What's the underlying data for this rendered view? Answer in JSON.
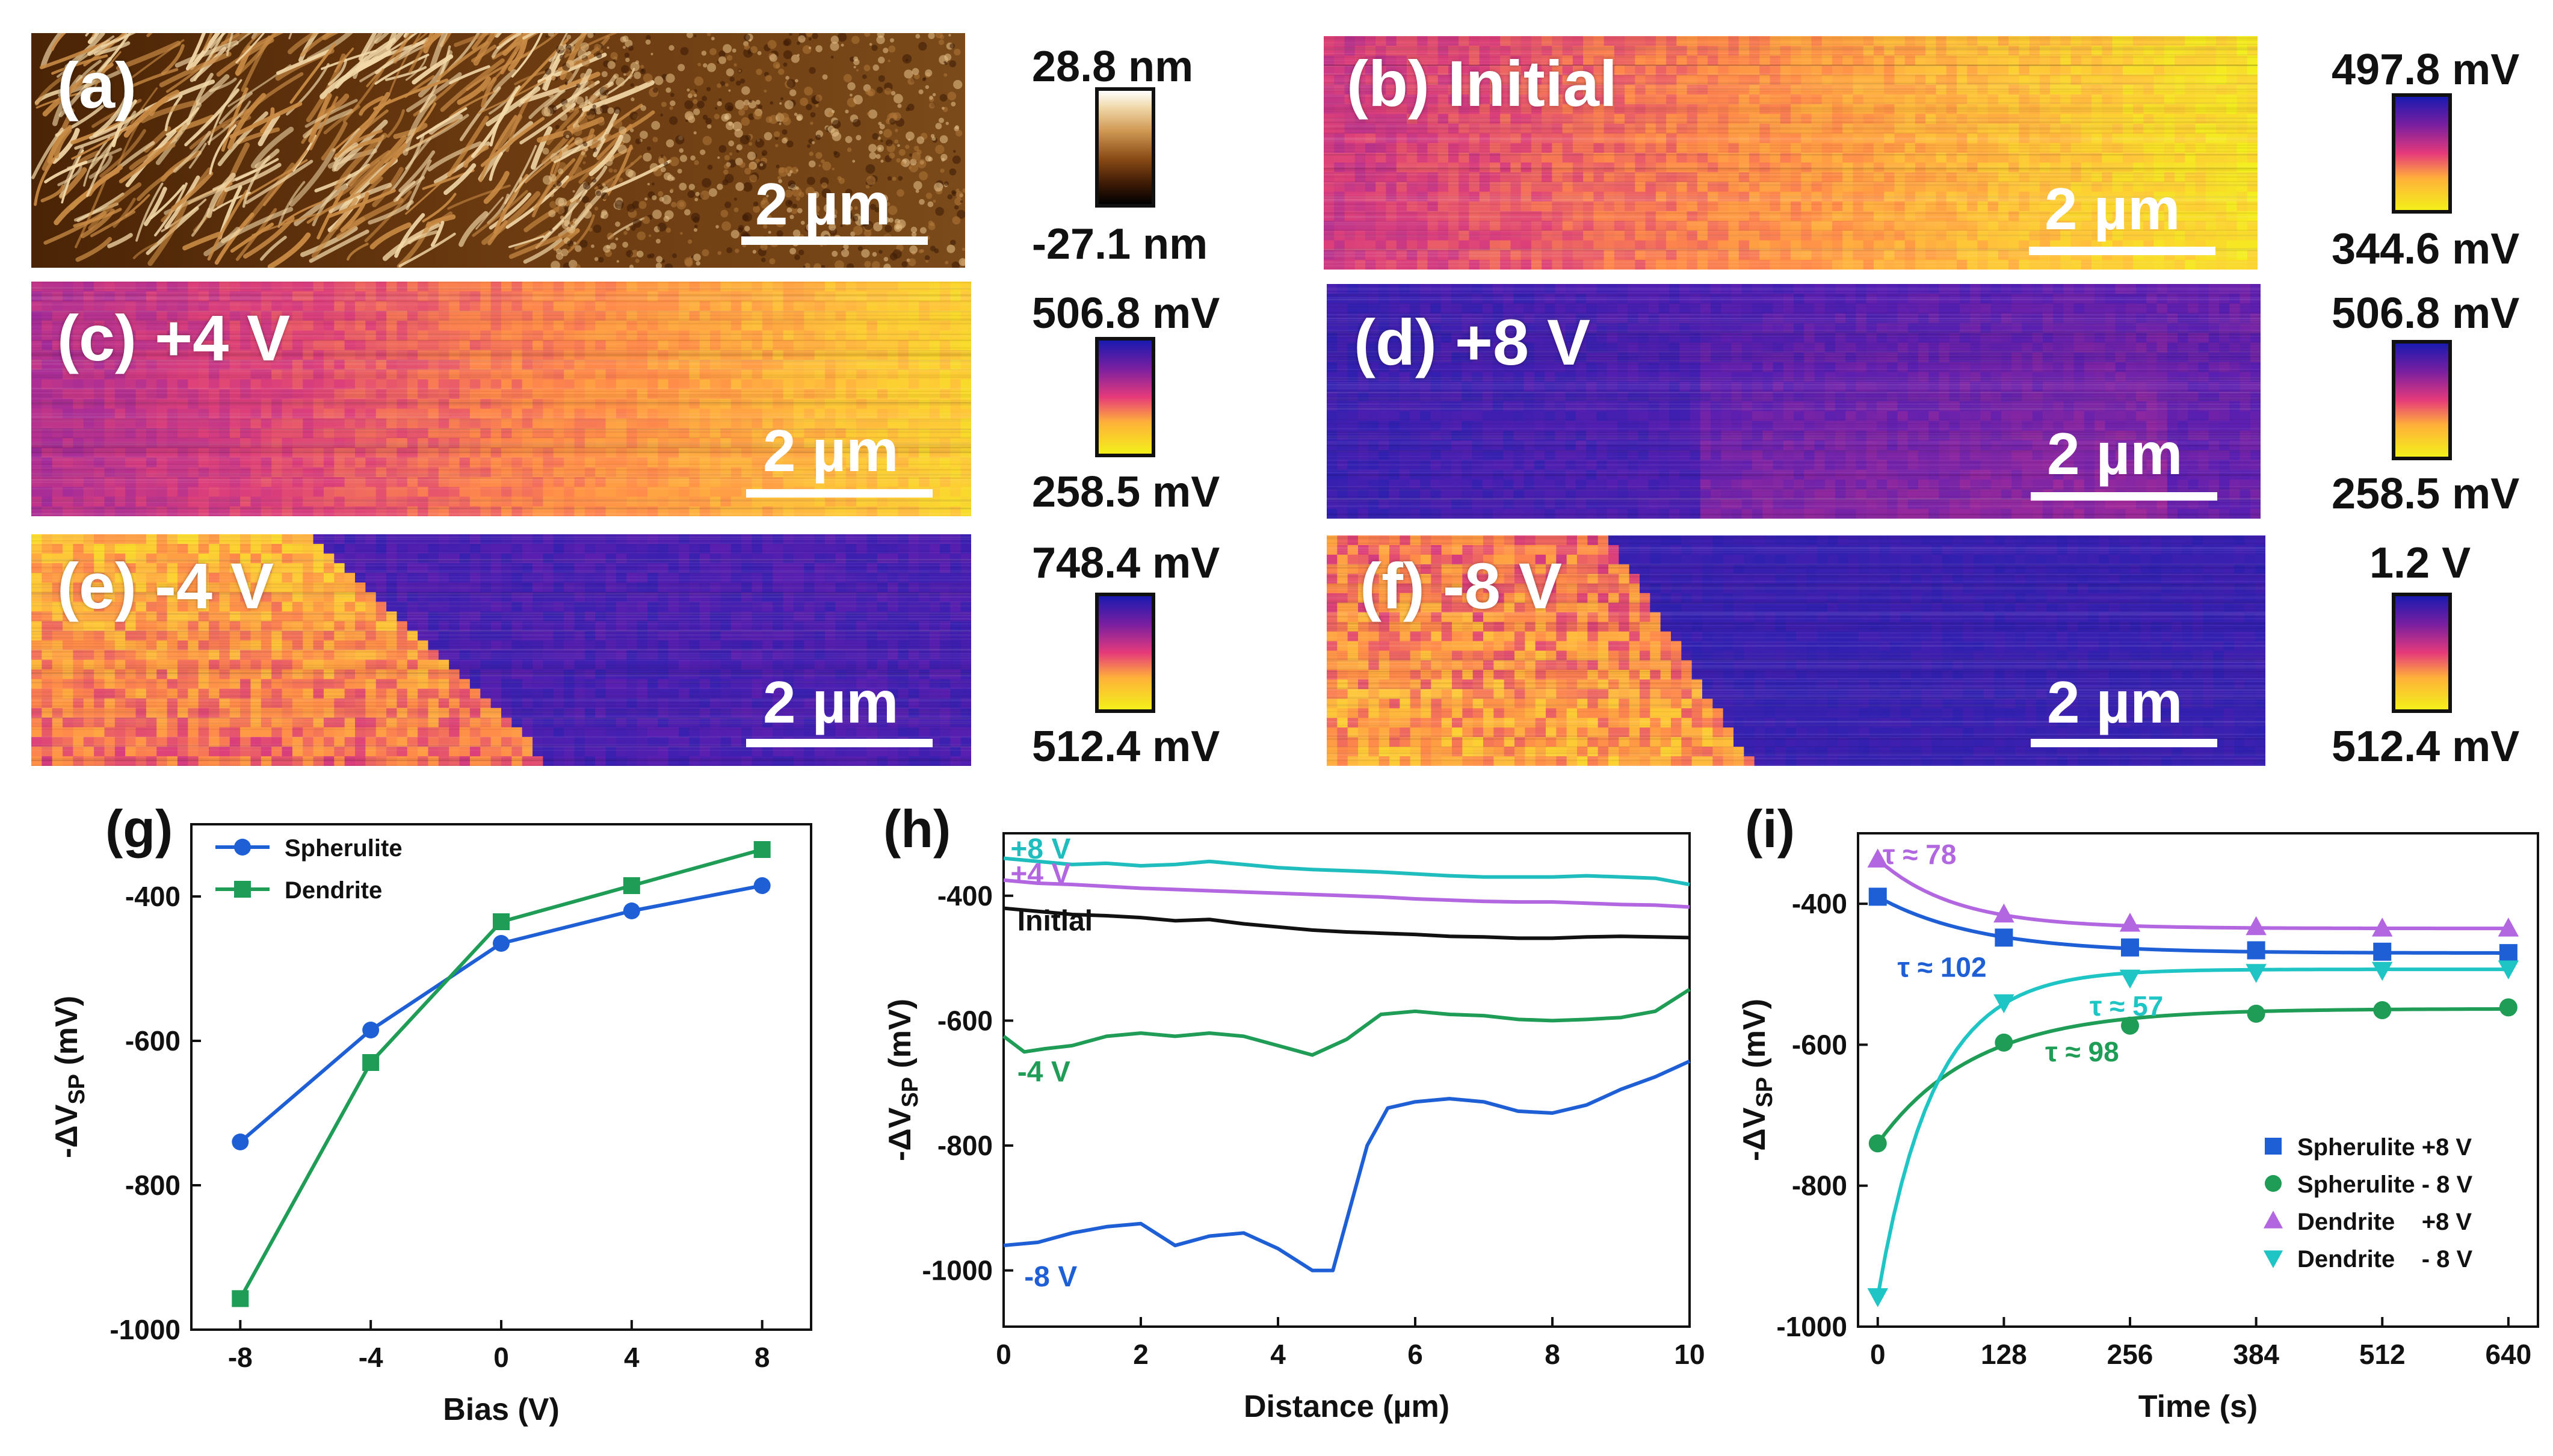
{
  "maps": [
    {
      "id": "a",
      "label": "(a)",
      "scale": "2 µm",
      "cmax": "28.8 nm",
      "cmin": "-27.1 nm",
      "kind": "afm",
      "pattern": "afm"
    },
    {
      "id": "b",
      "label": "(b) Initial",
      "scale": "2 µm",
      "cmax": "497.8 mV",
      "cmin": "344.6 mV",
      "kind": "kpfm",
      "pattern": "initial"
    },
    {
      "id": "c",
      "label": "(c) +4 V",
      "scale": "2 µm",
      "cmax": "506.8 mV",
      "cmin": "258.5 mV",
      "kind": "kpfm",
      "pattern": "p4"
    },
    {
      "id": "d",
      "label": "(d) +8 V",
      "scale": "2 µm",
      "cmax": "506.8 mV",
      "cmin": "258.5 mV",
      "kind": "kpfm",
      "pattern": "p8"
    },
    {
      "id": "e",
      "label": "(e) -4 V",
      "scale": "2 µm",
      "cmax": "748.4 mV",
      "cmin": "512.4 mV",
      "kind": "kpfm",
      "pattern": "m4"
    },
    {
      "id": "f",
      "label": "(f) -8 V",
      "scale": "2 µm",
      "cmax": "1.2 V",
      "cmin": "512.4 mV",
      "kind": "kpfm",
      "pattern": "m8"
    }
  ],
  "colors": {
    "spherulite": "#1f5fd6",
    "dendrite": "#1f9c55",
    "p8": "#1fbdbd",
    "p4": "#b267e0",
    "initial": "#111111",
    "m4": "#1f9c55",
    "m8": "#1f5fd6",
    "dendrite_p8": "#b267e0",
    "dendrite_m8": "#1fc4c4"
  },
  "chart_data": [
    {
      "id": "g",
      "label": "(g)",
      "type": "line",
      "xlabel": "Bias (V)",
      "ylabel": "-ΔV",
      "ylabel_sub": "SP",
      "ylabel_unit": " (mV)",
      "xlim": [
        -9.5,
        9.5
      ],
      "ylim": [
        -1000,
        -300
      ],
      "xticks": [
        -8,
        -4,
        0,
        4,
        8
      ],
      "xtick_labels": [
        "-8",
        "-4",
        "0",
        "4",
        "8"
      ],
      "yticks": [
        -1000,
        -800,
        -600,
        -400
      ],
      "ytick_labels": [
        "-1000",
        "-800",
        "-600",
        "-400"
      ],
      "series": [
        {
          "name": "Spherulite",
          "marker": "circle",
          "color": "spherulite",
          "x": [
            -8,
            -4,
            0,
            4,
            8
          ],
          "y": [
            -740,
            -585,
            -465,
            -420,
            -385
          ]
        },
        {
          "name": "Dendrite",
          "marker": "square",
          "color": "dendrite",
          "x": [
            -8,
            -4,
            0,
            4,
            8
          ],
          "y": [
            -957,
            -630,
            -435,
            -385,
            -335
          ]
        }
      ]
    },
    {
      "id": "h",
      "label": "(h)",
      "type": "line",
      "xlabel": "Distance (µm)",
      "ylabel": "-ΔV",
      "ylabel_sub": "SP",
      "ylabel_unit": " (mV)",
      "xlim": [
        0,
        10
      ],
      "ylim": [
        -1090,
        -300
      ],
      "xticks": [
        0,
        2,
        4,
        6,
        8,
        10
      ],
      "xtick_labels": [
        "0",
        "2",
        "4",
        "6",
        "8",
        "10"
      ],
      "yticks": [
        -1000,
        -800,
        -600,
        -400
      ],
      "ytick_labels": [
        "-1000",
        "-800",
        "-600",
        "-400"
      ],
      "series": [
        {
          "name": "+8 V",
          "color": "p8",
          "x": [
            0,
            0.5,
            1,
            1.5,
            2,
            2.5,
            3,
            3.5,
            4,
            4.5,
            5,
            5.5,
            6,
            6.5,
            7,
            7.5,
            8,
            8.5,
            9,
            9.5,
            10
          ],
          "y": [
            -340,
            -345,
            -350,
            -348,
            -352,
            -350,
            -345,
            -350,
            -355,
            -358,
            -360,
            -362,
            -365,
            -368,
            -370,
            -370,
            -370,
            -368,
            -370,
            -372,
            -382
          ]
        },
        {
          "name": "+4 V",
          "color": "p4",
          "x": [
            0,
            0.5,
            1,
            1.5,
            2,
            2.5,
            3,
            3.5,
            4,
            4.5,
            5,
            5.5,
            6,
            6.5,
            7,
            7.5,
            8,
            8.5,
            9,
            9.5,
            10
          ],
          "y": [
            -375,
            -380,
            -382,
            -385,
            -388,
            -390,
            -392,
            -394,
            -396,
            -398,
            -400,
            -402,
            -405,
            -407,
            -409,
            -410,
            -410,
            -412,
            -414,
            -415,
            -418
          ]
        },
        {
          "name": "Initial",
          "color": "initial",
          "x": [
            0,
            0.5,
            1,
            1.5,
            2,
            2.5,
            3,
            3.5,
            4,
            4.5,
            5,
            5.5,
            6,
            6.5,
            7,
            7.5,
            8,
            8.5,
            9,
            9.5,
            10
          ],
          "y": [
            -420,
            -425,
            -430,
            -432,
            -435,
            -440,
            -438,
            -445,
            -450,
            -455,
            -458,
            -460,
            -462,
            -465,
            -466,
            -468,
            -468,
            -466,
            -465,
            -466,
            -467
          ]
        },
        {
          "name": "-4 V",
          "color": "m4",
          "x": [
            0,
            0.3,
            0.6,
            1,
            1.5,
            2,
            2.5,
            3,
            3.5,
            4,
            4.5,
            5,
            5.5,
            6,
            6.5,
            7,
            7.5,
            8,
            8.5,
            9,
            9.5,
            10
          ],
          "y": [
            -625,
            -650,
            -645,
            -640,
            -625,
            -620,
            -625,
            -620,
            -625,
            -640,
            -655,
            -630,
            -590,
            -585,
            -590,
            -592,
            -598,
            -600,
            -598,
            -595,
            -585,
            -550
          ]
        },
        {
          "name": "-8 V",
          "color": "m8",
          "x": [
            0,
            0.5,
            1,
            1.5,
            2,
            2.5,
            3,
            3.5,
            4,
            4.5,
            4.8,
            5,
            5.3,
            5.6,
            6,
            6.5,
            7,
            7.5,
            8,
            8.5,
            9,
            9.5,
            10
          ],
          "y": [
            -960,
            -955,
            -940,
            -930,
            -925,
            -960,
            -945,
            -940,
            -965,
            -1000,
            -1000,
            -920,
            -800,
            -740,
            -730,
            -725,
            -730,
            -745,
            -748,
            -735,
            -710,
            -690,
            -665
          ]
        }
      ],
      "line_labels": [
        {
          "text": "+8 V",
          "color": "p8",
          "x": 0.1,
          "y": -325
        },
        {
          "text": "+4 V",
          "color": "p4",
          "x": 0.1,
          "y": -365
        },
        {
          "text": "Initial",
          "color": "initial",
          "x": 0.2,
          "y": -440
        },
        {
          "text": "-4 V",
          "color": "m4",
          "x": 0.2,
          "y": -682
        },
        {
          "text": "-8 V",
          "color": "m8",
          "x": 0.3,
          "y": -1010
        }
      ]
    },
    {
      "id": "i",
      "label": "(i)",
      "type": "scatter",
      "xlabel": "Time (s)",
      "ylabel": "-ΔV",
      "ylabel_sub": "SP",
      "ylabel_unit": " (mV)",
      "xlim": [
        -20,
        670
      ],
      "ylim": [
        -1000,
        -300
      ],
      "xticks": [
        0,
        128,
        256,
        384,
        512,
        640
      ],
      "xtick_labels": [
        "0",
        "128",
        "256",
        "384",
        "512",
        "640"
      ],
      "yticks": [
        -1000,
        -800,
        -600,
        -400
      ],
      "ytick_labels": [
        "-1000",
        "-800",
        "-600",
        "-400"
      ],
      "series": [
        {
          "name": "Spherulite +8 V",
          "marker": "square",
          "color": "spherulite",
          "x": [
            0,
            128,
            256,
            384,
            512,
            640
          ],
          "y": [
            -390,
            -448,
            -462,
            -466,
            -468,
            -470
          ],
          "fit": {
            "y0": -390,
            "yinf": -470,
            "tau": 102
          }
        },
        {
          "name": "Spherulite - 8 V",
          "marker": "circle",
          "color": "dendrite",
          "x": [
            0,
            128,
            256,
            384,
            512,
            640
          ],
          "y": [
            -740,
            -597,
            -573,
            -556,
            -551,
            -547
          ],
          "fit": {
            "y0": -740,
            "yinf": -549,
            "tau": 98
          }
        },
        {
          "name": "Dendrite    +8 V",
          "marker": "triangle-up",
          "color": "dendrite_p8",
          "x": [
            0,
            128,
            256,
            384,
            512,
            640
          ],
          "y": [
            -337,
            -415,
            -428,
            -433,
            -435,
            -435
          ],
          "fit": {
            "y0": -337,
            "yinf": -435,
            "tau": 78
          }
        },
        {
          "name": "Dendrite    - 8 V",
          "marker": "triangle-down",
          "color": "dendrite_m8",
          "x": [
            0,
            128,
            256,
            384,
            512,
            640
          ],
          "y": [
            -957,
            -540,
            -505,
            -497,
            -494,
            -492
          ],
          "fit": {
            "y0": -957,
            "yinf": -493,
            "tau": 57
          }
        }
      ],
      "annotations": [
        {
          "text": "τ ≈ 78",
          "color": "dendrite_p8",
          "x": 5,
          "y": -330
        },
        {
          "text": "τ ≈ 102",
          "color": "spherulite",
          "x": 20,
          "y": -490
        },
        {
          "text": "τ ≈ 57",
          "color": "dendrite_m8",
          "x": 215,
          "y": -545
        },
        {
          "text": "τ ≈ 98",
          "color": "dendrite",
          "x": 170,
          "y": -610
        }
      ]
    }
  ]
}
